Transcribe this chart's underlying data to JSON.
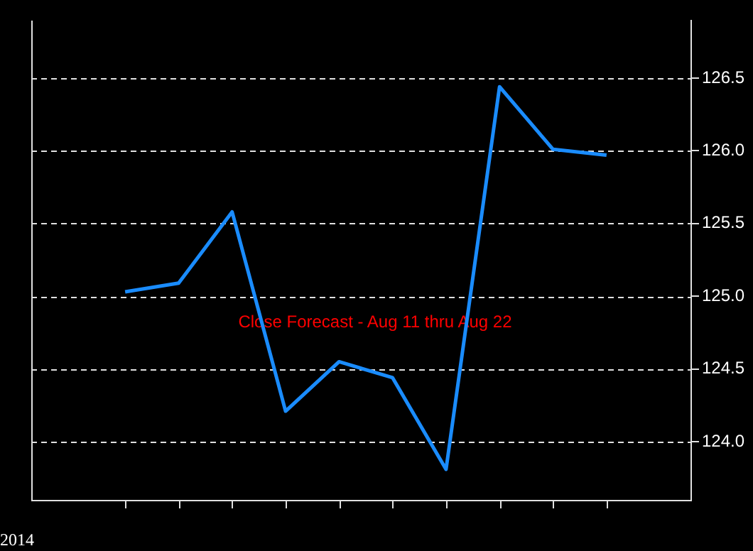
{
  "chart_data": {
    "type": "line",
    "categories": [
      null,
      null,
      null,
      null,
      null,
      null,
      null,
      null,
      null,
      null
    ],
    "series": [
      {
        "color": "#1a8cff",
        "values": [
          125.03,
          125.09,
          125.58,
          124.21,
          124.55,
          124.44,
          123.81,
          126.44,
          126.01,
          125.97
        ]
      }
    ],
    "ylim": [
      123.6,
      126.9
    ],
    "yticks": [
      {
        "value": 124,
        "label": "124.0"
      },
      {
        "value": 124.5,
        "label": "124.5"
      },
      {
        "value": 125,
        "label": "125.0"
      },
      {
        "value": 125.5,
        "label": "125.5"
      },
      {
        "value": 126,
        "label": "126.0"
      },
      {
        "value": 126.5,
        "label": "126.5"
      }
    ],
    "annotations": [
      "Close Forecast - Aug 11 thru Aug 22",
      "2014"
    ],
    "grid": "y",
    "tick_labels": "y",
    "marker": "none",
    "line_style": "solid",
    "legend": false
  }
}
